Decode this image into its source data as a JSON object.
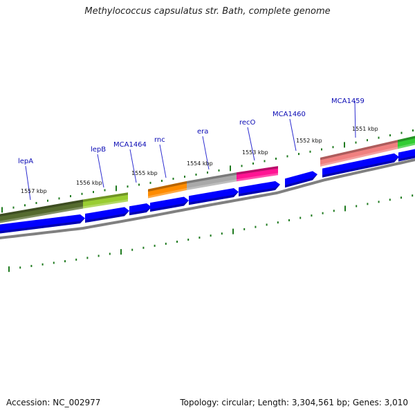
{
  "header": {
    "title": "Methylococcus capsulatus str. Bath, complete genome"
  },
  "footer": {
    "accession": "Accession: NC_002977",
    "summary": "Topology: circular; Length: 3,304,561 bp; Genes: 3,010"
  },
  "genome_map": {
    "kbp_markers": [
      {
        "label": "1551 kbp"
      },
      {
        "label": "1552 kbp"
      },
      {
        "label": "1553 kbp"
      },
      {
        "label": "1554 kbp"
      },
      {
        "label": "1555 kbp"
      },
      {
        "label": "1556 kbp"
      },
      {
        "label": "1557 kbp"
      }
    ],
    "genes": [
      {
        "name": "MCA1459",
        "color": "#f08080"
      },
      {
        "name": "MCA1460",
        "color": "#0000ff"
      },
      {
        "name": "recO",
        "color": "#ff1493"
      },
      {
        "name": "era",
        "color": "#a9a9a9"
      },
      {
        "name": "rnc",
        "color": "#ff8c00"
      },
      {
        "name": "MCA1464",
        "color": "#0000ff"
      },
      {
        "name": "lepB",
        "color": "#9acd32"
      },
      {
        "name": "lepA",
        "color": "#556b2f"
      }
    ],
    "colors": {
      "cds_arrow": "#0000ff",
      "backbone": "#808080",
      "tick": "#1e7a1e",
      "unlabeled_feature": "#32cd32"
    }
  }
}
